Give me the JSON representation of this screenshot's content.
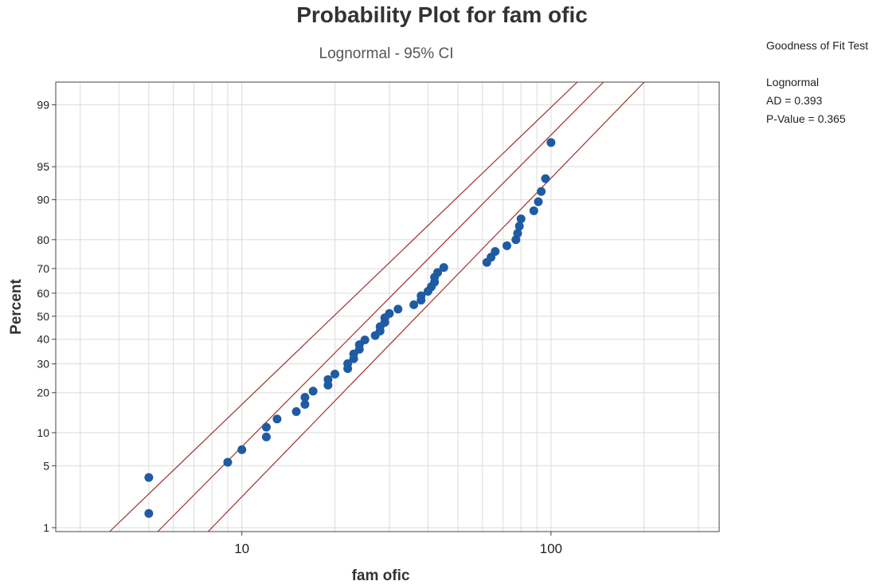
{
  "chart_data": {
    "type": "scatter",
    "title": "Probability Plot for fam ofic",
    "subtitle": "Lognormal - 95% CI",
    "xlabel": "fam ofic",
    "ylabel": "Percent",
    "x_scale": "log",
    "y_scale": "normal-probability",
    "xlim": [
      2.5,
      350
    ],
    "ylim": [
      1,
      99
    ],
    "x_ticks": [
      10,
      100
    ],
    "x_tick_labels": [
      "10",
      "100"
    ],
    "y_ticks": [
      1,
      5,
      10,
      20,
      30,
      40,
      50,
      60,
      70,
      80,
      90,
      95,
      99
    ],
    "y_tick_labels": [
      "1",
      "5",
      "10",
      "20",
      "30",
      "40",
      "50",
      "60",
      "70",
      "80",
      "90",
      "95",
      "99"
    ],
    "grid": true,
    "fit_line": {
      "x_at_1pct": 5.5,
      "x_at_99pct": 125
    },
    "ci_lower": {
      "x_at_1pct": 3.85,
      "x_at_99pct": 102
    },
    "ci_upper": {
      "x_at_1pct": 8.0,
      "x_at_99pct": 170
    },
    "line_color": "#a0312b",
    "point_color": "#1f5ba3",
    "points": [
      {
        "x": 5,
        "y": 1.5
      },
      {
        "x": 5,
        "y": 3.8
      },
      {
        "x": 9,
        "y": 5.4
      },
      {
        "x": 10,
        "y": 7.1
      },
      {
        "x": 12,
        "y": 9.2
      },
      {
        "x": 12,
        "y": 11.1
      },
      {
        "x": 13,
        "y": 12.9
      },
      {
        "x": 15,
        "y": 14.7
      },
      {
        "x": 16,
        "y": 16.6
      },
      {
        "x": 16,
        "y": 18.6
      },
      {
        "x": 17,
        "y": 20.5
      },
      {
        "x": 19,
        "y": 22.4
      },
      {
        "x": 19,
        "y": 24.3
      },
      {
        "x": 20,
        "y": 26.2
      },
      {
        "x": 22,
        "y": 28.2
      },
      {
        "x": 22,
        "y": 30.1
      },
      {
        "x": 23,
        "y": 32.0
      },
      {
        "x": 23,
        "y": 33.9
      },
      {
        "x": 24,
        "y": 35.8
      },
      {
        "x": 24,
        "y": 37.7
      },
      {
        "x": 25,
        "y": 39.7
      },
      {
        "x": 27,
        "y": 41.6
      },
      {
        "x": 28,
        "y": 43.5
      },
      {
        "x": 28,
        "y": 45.4
      },
      {
        "x": 29,
        "y": 47.3
      },
      {
        "x": 29,
        "y": 49.3
      },
      {
        "x": 30,
        "y": 51.2
      },
      {
        "x": 32,
        "y": 53.1
      },
      {
        "x": 36,
        "y": 55.0
      },
      {
        "x": 38,
        "y": 57.0
      },
      {
        "x": 38,
        "y": 58.9
      },
      {
        "x": 40,
        "y": 60.8
      },
      {
        "x": 41,
        "y": 62.7
      },
      {
        "x": 42,
        "y": 64.6
      },
      {
        "x": 42,
        "y": 66.6
      },
      {
        "x": 43,
        "y": 68.5
      },
      {
        "x": 45,
        "y": 70.4
      },
      {
        "x": 62,
        "y": 72.3
      },
      {
        "x": 64,
        "y": 74.2
      },
      {
        "x": 66,
        "y": 76.2
      },
      {
        "x": 72,
        "y": 78.1
      },
      {
        "x": 77,
        "y": 80.0
      },
      {
        "x": 78,
        "y": 81.9
      },
      {
        "x": 79,
        "y": 83.9
      },
      {
        "x": 80,
        "y": 85.8
      },
      {
        "x": 88,
        "y": 87.7
      },
      {
        "x": 91,
        "y": 89.6
      },
      {
        "x": 93,
        "y": 91.5
      },
      {
        "x": 96,
        "y": 93.5
      },
      {
        "x": 100,
        "y": 97.2
      }
    ]
  },
  "goodness_of_fit": {
    "heading": "Goodness of Fit Test",
    "dist": "Lognormal",
    "ad": "AD = 0.393",
    "pvalue": "P-Value = 0.365"
  }
}
